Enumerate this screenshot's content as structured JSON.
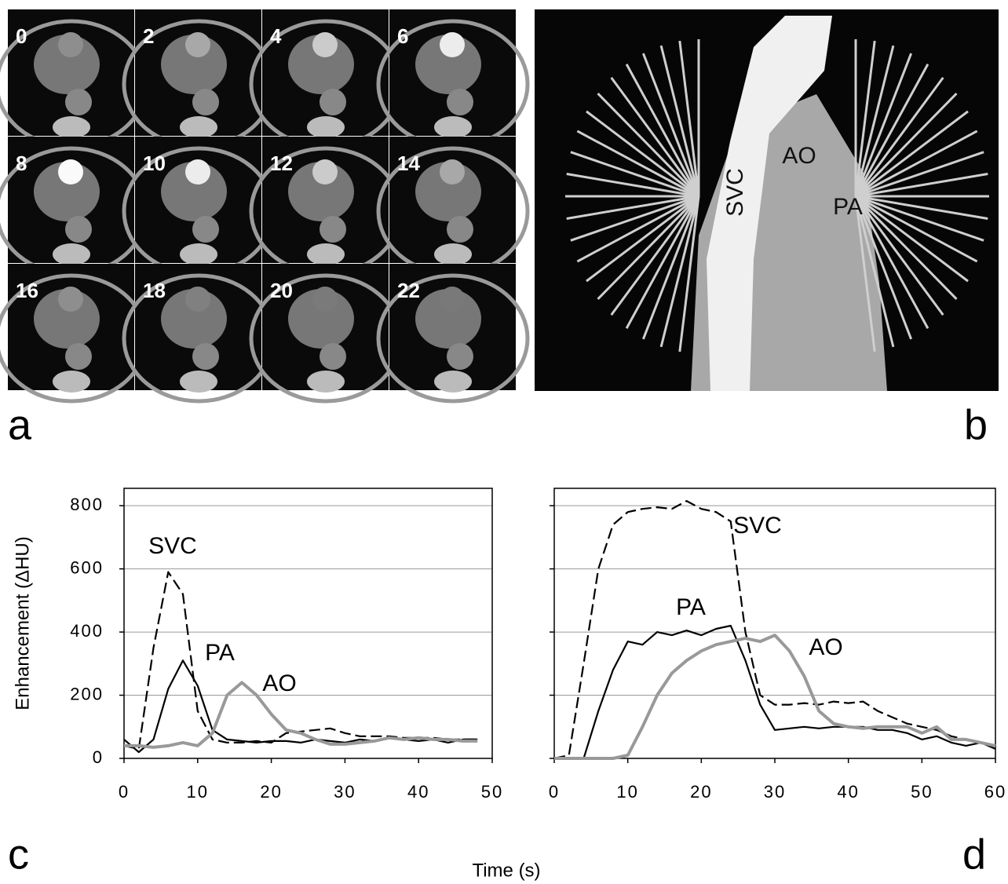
{
  "panels": {
    "a": {
      "letter": "a",
      "frame_labels": [
        0,
        2,
        4,
        6,
        8,
        10,
        12,
        14,
        16,
        18,
        20,
        22
      ]
    },
    "b": {
      "letter": "b",
      "labels": [
        "SVC",
        "AO",
        "PA"
      ]
    },
    "c": {
      "letter": "c"
    },
    "d": {
      "letter": "d"
    }
  },
  "x_label": "Time (s)",
  "chart_data": [
    {
      "type": "line",
      "y_label": "Enhancement (ΔHU)",
      "xlim": [
        0,
        50
      ],
      "ylim": [
        0,
        855
      ],
      "xticks": [
        0,
        10,
        20,
        30,
        40,
        50
      ],
      "yticks": [
        0,
        200,
        400,
        600,
        800
      ],
      "show_ytick_labels": true,
      "grid": true,
      "x": [
        0,
        2,
        4,
        6,
        8,
        10,
        12,
        14,
        16,
        18,
        20,
        22,
        24,
        26,
        28,
        30,
        32,
        34,
        36,
        38,
        40,
        42,
        44,
        46,
        48
      ],
      "series": [
        {
          "name": "SVC",
          "color": "#000000",
          "line_style": "dashed",
          "values": [
            40,
            30,
            350,
            590,
            520,
            150,
            60,
            50,
            50,
            55,
            50,
            80,
            85,
            90,
            95,
            80,
            70,
            70,
            70,
            65,
            65,
            65,
            60,
            60,
            60
          ]
        },
        {
          "name": "PA",
          "color": "#000000",
          "line_style": "solid",
          "values": [
            60,
            20,
            60,
            220,
            310,
            230,
            90,
            60,
            55,
            50,
            55,
            55,
            50,
            60,
            55,
            50,
            60,
            55,
            65,
            60,
            55,
            60,
            50,
            60,
            60
          ]
        },
        {
          "name": "AO",
          "color": "#999999",
          "line_style": "solid",
          "values": [
            40,
            40,
            35,
            40,
            50,
            40,
            80,
            200,
            240,
            200,
            140,
            90,
            80,
            60,
            45,
            45,
            50,
            55,
            65,
            60,
            65,
            60,
            60,
            55,
            55
          ]
        }
      ]
    },
    {
      "type": "line",
      "xlim": [
        0,
        60
      ],
      "ylim": [
        0,
        855
      ],
      "xticks": [
        0,
        10,
        20,
        30,
        40,
        50,
        60
      ],
      "yticks": [
        0,
        200,
        400,
        600,
        800
      ],
      "show_ytick_labels": false,
      "grid": true,
      "x": [
        0,
        2,
        4,
        6,
        8,
        10,
        12,
        14,
        16,
        18,
        20,
        22,
        24,
        26,
        28,
        30,
        32,
        34,
        36,
        38,
        40,
        42,
        44,
        46,
        48,
        50,
        52,
        54,
        56,
        58,
        60
      ],
      "series": [
        {
          "name": "SVC",
          "color": "#000000",
          "line_style": "dashed",
          "values": [
            0,
            10,
            300,
            600,
            740,
            780,
            790,
            795,
            790,
            815,
            790,
            780,
            750,
            400,
            200,
            170,
            170,
            175,
            170,
            180,
            175,
            180,
            150,
            130,
            110,
            100,
            90,
            70,
            60,
            50,
            40
          ]
        },
        {
          "name": "PA",
          "color": "#000000",
          "line_style": "solid",
          "values": [
            0,
            0,
            0,
            150,
            280,
            370,
            360,
            400,
            390,
            405,
            390,
            410,
            420,
            310,
            170,
            90,
            95,
            100,
            95,
            100,
            100,
            100,
            90,
            90,
            80,
            60,
            70,
            50,
            40,
            50,
            30
          ]
        },
        {
          "name": "AO",
          "color": "#999999",
          "line_style": "solid",
          "values": [
            0,
            0,
            0,
            0,
            0,
            10,
            100,
            200,
            270,
            310,
            340,
            360,
            370,
            380,
            370,
            390,
            340,
            260,
            150,
            110,
            100,
            95,
            100,
            100,
            100,
            80,
            100,
            60,
            60,
            50,
            40
          ]
        }
      ]
    }
  ]
}
